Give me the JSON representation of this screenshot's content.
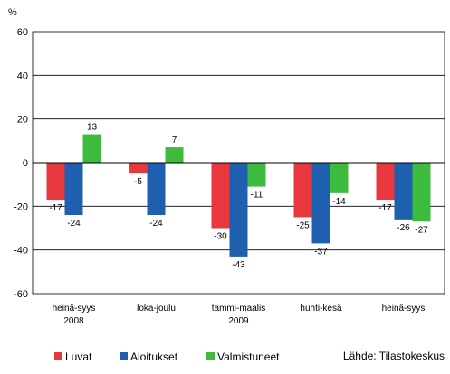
{
  "chart_data": {
    "type": "bar",
    "ylabel": "%",
    "ylim": [
      -60,
      60
    ],
    "yticks": [
      60,
      40,
      20,
      0,
      -20,
      -40,
      -60
    ],
    "grid": true,
    "legend_placement": "bottom-left",
    "categories": [
      [
        "heinä-syys",
        "2008"
      ],
      [
        "loka-joulu",
        ""
      ],
      [
        "tammi-maalis",
        "2009"
      ],
      [
        "huhti-kesä",
        ""
      ],
      [
        "heinä-syys",
        ""
      ]
    ],
    "series": [
      {
        "name": "Luvat",
        "color": "#e8373d",
        "values": [
          -17,
          -5,
          -30,
          -25,
          -17
        ]
      },
      {
        "name": "Aloitukset",
        "color": "#1f5fb0",
        "values": [
          -24,
          -24,
          -43,
          -37,
          -26
        ]
      },
      {
        "name": "Valmistuneet",
        "color": "#3dbb3d",
        "values": [
          13,
          7,
          -11,
          -14,
          -27
        ]
      }
    ],
    "source": "Lähde: Tilastokeskus"
  }
}
